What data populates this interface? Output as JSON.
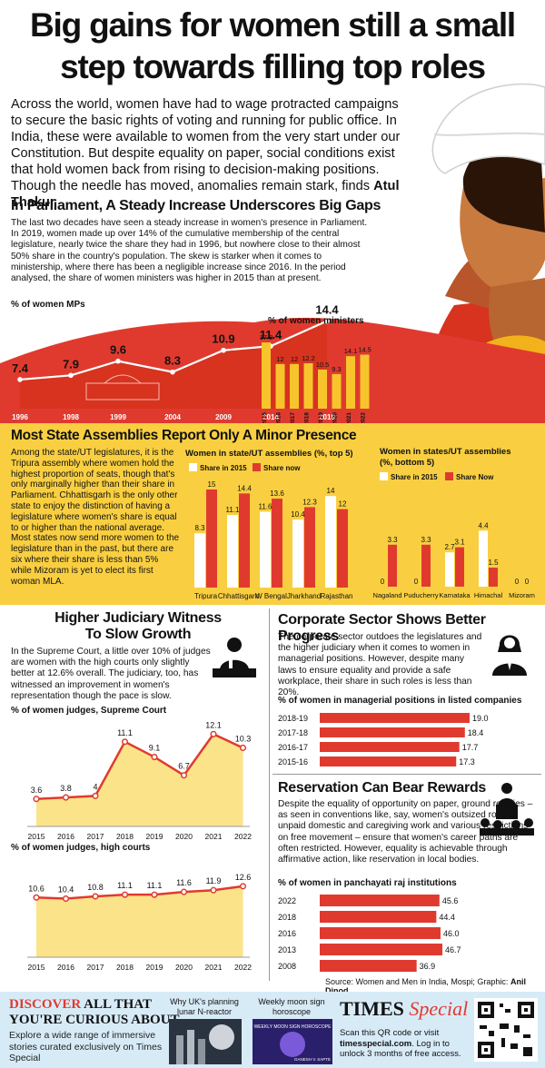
{
  "title_line1": "Big gains for women still a small",
  "title_line2": "step towards filling top roles",
  "intro": "Across the world, women have had to wage protracted campaigns to secure the basic rights of voting and running for public office. In India, these were available to women from the very start under our Constitution. But despite equality on paper, social conditions exist that hold women back from rising to decision-making positions. Though the needle has moved, anomalies remain stark, finds",
  "author": "Atul Thakur",
  "parliament": {
    "heading": "In Parliament, A Steady Increase Underscores Big Gaps",
    "text": "The last two decades have seen a steady increase in women's presence in Parliament. In 2019, women made up over 14% of the cumulative membership of the central legislature, nearly twice the share they had in 1996, but nowhere close to their almost 50% share in the country's population. The skew is starker when it comes to ministership, where there has been a negligible increase since 2016. In the period analysed, the share of women ministers was higher in 2015 than at present."
  },
  "states": {
    "heading": "Most State Assemblies Report Only A Minor Presence",
    "text": "Among the state/UT legislatures, it is the Tripura assembly where women hold the highest proportion of seats, though that's only marginally higher than their share in Parliament. Chhattisgarh is the only other state to enjoy the distinction of having a legislature where women's share is equal to or higher than the national average. Most states now send more women to the legislature than in the past, but there are six where their share is less than 5% while Mizoram is yet to elect its first woman MLA."
  },
  "judiciary": {
    "heading1": "Higher Judiciary Witness",
    "heading2": "To Slow Growth",
    "text": "In the Supreme Court, a little over 10% of judges are women with the high courts only slightly better at 12.6% overall. The judiciary, too, has witnessed an improvement in women's representation though the pace is slow."
  },
  "corporate": {
    "heading": "Corporate Sector Shows Better Progress",
    "text": "The corporate sector outdoes the legislatures and the higher judiciary when it comes to women in managerial positions. However, despite many laws to ensure equality and provide a safe workplace, their share in such roles is less than 20%."
  },
  "reservation": {
    "heading": "Reservation Can Bear Rewards",
    "text": "Despite the equality of opportunity on paper, ground realities – as seen in conventions like, say, women's outsized role in unpaid domestic and caregiving work and various restrictions on free movement – ensure that women's career paths are often restricted. However, equality is achievable through affirmative action, like reservation in local bodies."
  },
  "source": "Source: Women and Men in India, Mospi; Graphic:",
  "source_credit": "Anil Dinod",
  "footer": {
    "discover_red": "DISCOVER",
    "discover_rest": " ALL THAT",
    "curious": "YOU'RE CURIOUS ABOUT",
    "explore": "Explore a wide range of immersive stories curated exclusively on Times Special",
    "card1": "Why UK's planning lunar N-reactor",
    "card2": "Weekly moon sign horoscope",
    "brand1": "TIMES",
    "brand2": "Special",
    "scan": "Scan this QR code or visit",
    "url": "timesspecial.com",
    "unlock": ". Log in to unlock 3 months of free access.",
    "card2_strip": "WEEKLY MOON SIGN HOROSCOPE",
    "card2_name": "GANESH V. SAPTE"
  },
  "colors": {
    "red": "#e03a2f",
    "yellow": "#f9cf41",
    "light_yellow": "#fbe38a",
    "blue_footer": "#d7ebf7"
  },
  "chart_data": [
    {
      "type": "area",
      "id": "women_mps",
      "title": "% of women MPs",
      "x": [
        "1996",
        "1998",
        "1999",
        "2004",
        "2009",
        "2014",
        "2019"
      ],
      "values": [
        7.4,
        7.9,
        9.6,
        8.3,
        10.9,
        11.4,
        14.4
      ]
    },
    {
      "type": "bar",
      "id": "women_ministers",
      "title": "% of women ministers",
      "categories": [
        "2015",
        "2016",
        "2017",
        "2018",
        "2019",
        "2020",
        "2021",
        "2022"
      ],
      "values": [
        17.8,
        12,
        12,
        12.2,
        10.5,
        9.3,
        14.1,
        14.5
      ]
    },
    {
      "type": "bar",
      "id": "states_top5",
      "title": "Women in state/UT assemblies (%, top 5)",
      "categories": [
        "Tripura",
        "Chhattisgarh",
        "W Bengal",
        "Jharkhand",
        "Rajasthan"
      ],
      "series": [
        {
          "name": "Share in 2015",
          "values": [
            8.3,
            11.1,
            11.6,
            10.4,
            14
          ]
        },
        {
          "name": "Share now",
          "values": [
            15,
            14.4,
            13.6,
            12.3,
            12
          ]
        }
      ]
    },
    {
      "type": "bar",
      "id": "states_bottom5",
      "title_line1": "Women in states/UT assemblies",
      "title_line2": "(%, bottom 5)",
      "categories": [
        "Nagaland",
        "Puducherry",
        "Karnataka",
        "Himachal",
        "Mizoram"
      ],
      "series": [
        {
          "name": "Share in 2015",
          "values": [
            0,
            0,
            2.7,
            4.4,
            0
          ]
        },
        {
          "name": "Share Now",
          "values": [
            3.3,
            3.3,
            3.1,
            1.5,
            0
          ]
        }
      ]
    },
    {
      "type": "area",
      "id": "sc_judges",
      "title": "% of women judges, Supreme Court",
      "x": [
        "2015",
        "2016",
        "2017",
        "2018",
        "2019",
        "2020",
        "2021",
        "2022"
      ],
      "values": [
        3.6,
        3.8,
        4.0,
        11.1,
        9.1,
        6.7,
        12.1,
        10.3
      ]
    },
    {
      "type": "area",
      "id": "hc_judges",
      "title": "% of women judges, high courts",
      "x": [
        "2015",
        "2016",
        "2017",
        "2018",
        "2019",
        "2020",
        "2021",
        "2022"
      ],
      "values": [
        10.6,
        10.4,
        10.8,
        11.1,
        11.1,
        11.6,
        11.9,
        12.6
      ]
    },
    {
      "type": "bar",
      "id": "managerial",
      "title": "% of women in managerial positions in listed companies",
      "categories": [
        "2018-19",
        "2017-18",
        "2016-17",
        "2015-16"
      ],
      "values": [
        19.0,
        18.4,
        17.7,
        17.3
      ]
    },
    {
      "type": "bar",
      "id": "panchayati",
      "title": "% of women in panchayati raj institutions",
      "categories": [
        "2022",
        "2018",
        "2016",
        "2013",
        "2008"
      ],
      "values": [
        45.6,
        44.4,
        46.0,
        46.7,
        36.9
      ]
    }
  ]
}
